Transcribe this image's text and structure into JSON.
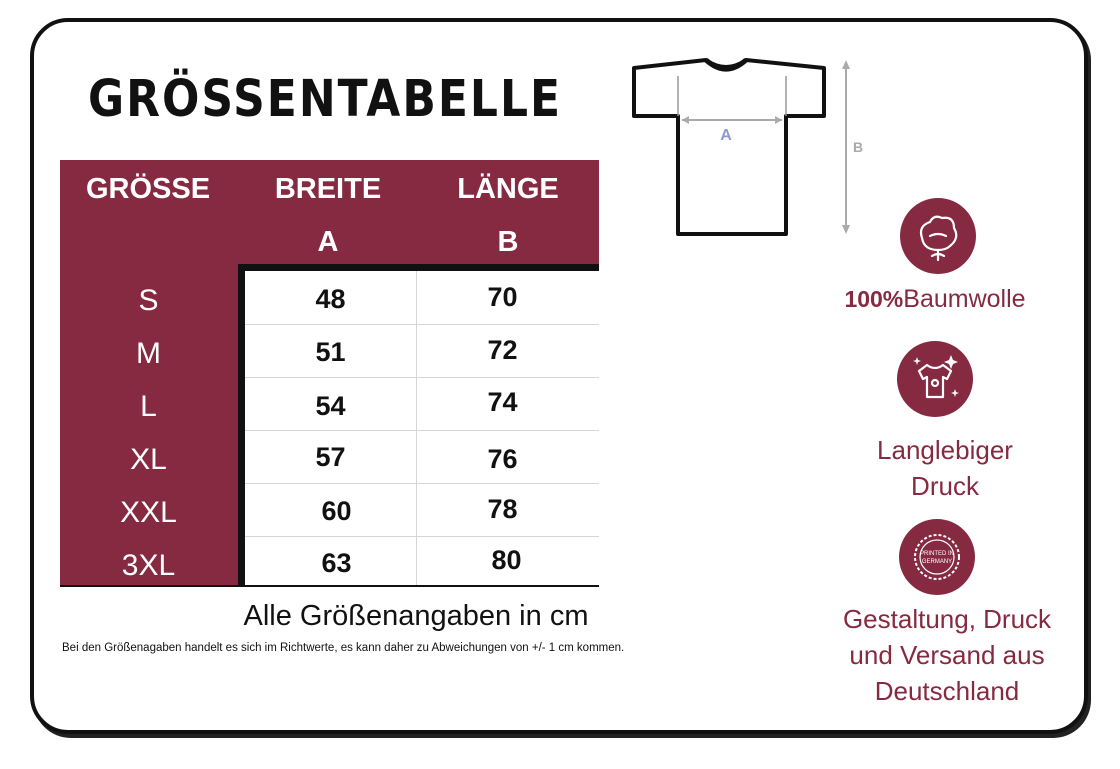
{
  "title": "GRÖSSENTABELLE",
  "table": {
    "headers": {
      "size": "GRÖSSE",
      "width": "BREITE",
      "width_sub": "A",
      "length": "LÄNGE",
      "length_sub": "B"
    },
    "rows": [
      {
        "size": "S",
        "width": "48",
        "length": "70"
      },
      {
        "size": "M",
        "width": "51",
        "length": "72"
      },
      {
        "size": "L",
        "width": "54",
        "length": "74"
      },
      {
        "size": "XL",
        "width": "57",
        "length": "76"
      },
      {
        "size": "XXL",
        "width": "60",
        "length": "78"
      },
      {
        "size": "3XL",
        "width": "63",
        "length": "80"
      }
    ]
  },
  "unit_note": "Alle Größenangaben in cm",
  "disclaimer": "Bei den Größenagaben handelt es sich im Richtwerte, es kann daher zu Abweichungen von +/- 1 cm kommen.",
  "diagram": {
    "label_a": "A",
    "label_b": "B"
  },
  "features": {
    "cotton_percent": "100%",
    "cotton_label": "Baumwolle",
    "print_line1": "Langlebiger",
    "print_line2": "Druck",
    "badge_text": "PRINTED IN GERMANY",
    "germany_line1": "Gestaltung, Druck",
    "germany_line2": "und Versand aus",
    "germany_line3": "Deutschland"
  },
  "colors": {
    "accent": "#862a42",
    "text": "#111111"
  }
}
